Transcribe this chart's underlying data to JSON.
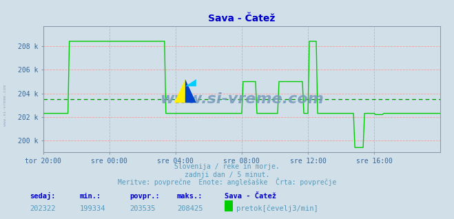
{
  "title": "Sava - Čatež",
  "title_color": "#0000cc",
  "bg_color": "#d0dfe8",
  "plot_bg_color": "#d0dfe8",
  "grid_color": "#ff9999",
  "line_color": "#00cc00",
  "avg_line_color": "#009900",
  "axis_color": "#0000aa",
  "tick_color": "#336699",
  "ylim": [
    199000,
    209700
  ],
  "yticks": [
    200000,
    202000,
    204000,
    206000,
    208000
  ],
  "ytick_labels": [
    "200 k",
    "202 k",
    "204 k",
    "206 k",
    "208 k"
  ],
  "avg_value": 203535,
  "min_value": 199334,
  "max_value": 208425,
  "current_value": 202322,
  "footer_line1": "Slovenija / reke in morje.",
  "footer_line2": "zadnji dan / 5 minut.",
  "footer_line3": "Meritve: povprečne  Enote: anglešaške  Črta: povprečje",
  "footer_color": "#5599bb",
  "label_sedaj": "sedaj:",
  "label_min": "min.:",
  "label_povpr": "povpr.:",
  "label_maks": "maks.:",
  "label_station": "Sava - Čatež",
  "label_pretok": "pretok[čevelj3/min]",
  "watermark": "www.si-vreme.com",
  "watermark_color": "#7799bb",
  "side_text": "www.si-vreme.com",
  "x_tick_labels": [
    "tor 20:00",
    "sre 00:00",
    "sre 04:00",
    "sre 08:00",
    "sre 12:00",
    "sre 16:00"
  ],
  "x_tick_positions": [
    0,
    48,
    96,
    144,
    192,
    240
  ],
  "total_points": 289
}
